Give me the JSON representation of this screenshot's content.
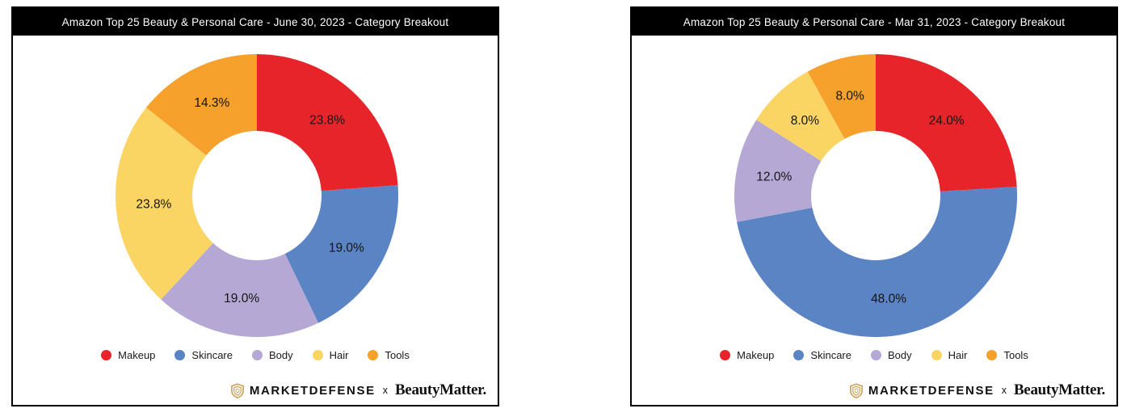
{
  "page": {
    "background": "#FFFFFF"
  },
  "footer": {
    "brand_left": "MARKETDEFENSE",
    "separator": "x",
    "brand_right": "BeautyMatter.",
    "shield_color": "#C9A45C"
  },
  "chart_data": [
    {
      "type": "pie",
      "subtype": "donut",
      "title": "Amazon Top 25 Beauty & Personal Care - June 30, 2023 - Category Breakout",
      "categories": [
        "Makeup",
        "Skincare",
        "Body",
        "Hair",
        "Tools"
      ],
      "values": [
        23.8,
        19.0,
        19.0,
        23.8,
        14.3
      ],
      "value_labels": [
        "23.8%",
        "19.0%",
        "19.0%",
        "23.8%",
        "14.3%"
      ],
      "colors": [
        "#E8242B",
        "#5B84C4",
        "#B5A8D5",
        "#FBD564",
        "#F6A12B"
      ],
      "start_angle_deg": 0,
      "direction": "clockwise",
      "legend_position": "bottom"
    },
    {
      "type": "pie",
      "subtype": "donut",
      "title": "Amazon Top 25 Beauty & Personal Care - Mar 31, 2023 - Category Breakout",
      "categories": [
        "Makeup",
        "Skincare",
        "Body",
        "Hair",
        "Tools"
      ],
      "values": [
        24.0,
        48.0,
        12.0,
        8.0,
        8.0
      ],
      "value_labels": [
        "24.0%",
        "48.0%",
        "12.0%",
        "8.0%",
        "8.0%"
      ],
      "colors": [
        "#E8242B",
        "#5B84C4",
        "#B5A8D5",
        "#FBD564",
        "#F6A12B"
      ],
      "start_angle_deg": 0,
      "direction": "clockwise",
      "legend_position": "bottom"
    }
  ]
}
